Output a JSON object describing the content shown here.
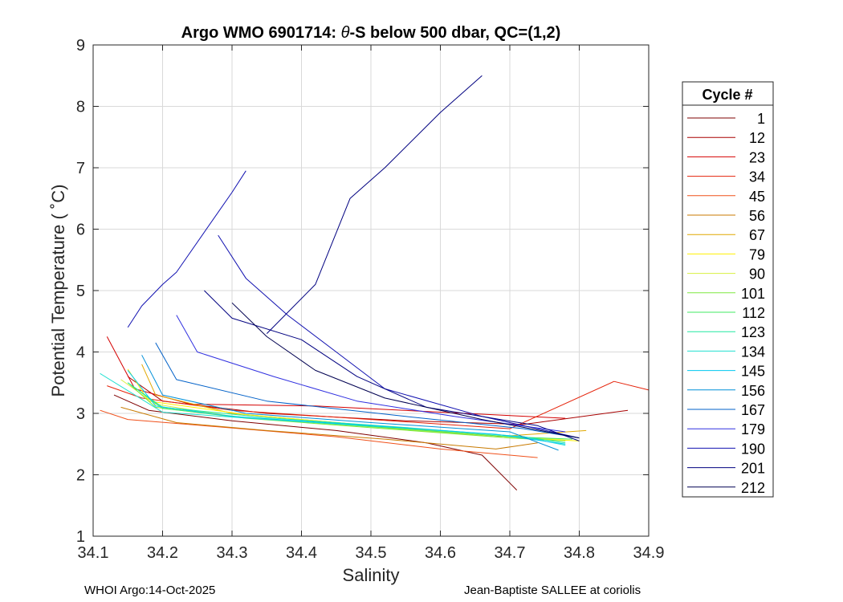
{
  "chart_data": {
    "type": "line",
    "title_prefix": "Argo WMO 6901714: ",
    "title_theta": "θ",
    "title_suffix": "-S below 500 dbar,  QC=(1,2)",
    "xlabel": "Salinity",
    "ylabel": "Potential Temperature ( ˚C)",
    "xlim": [
      34.1,
      34.9
    ],
    "ylim": [
      1,
      9
    ],
    "xticks": [
      "34.1",
      "34.2",
      "34.3",
      "34.4",
      "34.5",
      "34.6",
      "34.7",
      "34.8",
      "34.9"
    ],
    "yticks": [
      "1",
      "2",
      "3",
      "4",
      "5",
      "6",
      "7",
      "8",
      "9"
    ],
    "grid": true,
    "legend": {
      "title": "Cycle #",
      "placement": "outside-right",
      "entries": [
        "1",
        "12",
        "23",
        "34",
        "45",
        "56",
        "67",
        "79",
        "90",
        "101",
        "112",
        "123",
        "134",
        "145",
        "156",
        "167",
        "179",
        "190",
        "201",
        "212"
      ],
      "colors": [
        "#7f0000",
        "#a80000",
        "#d40000",
        "#e52209",
        "#f0501a",
        "#c87a00",
        "#e0a800",
        "#fff000",
        "#d8f040",
        "#7ee840",
        "#40e860",
        "#20e8a0",
        "#20e0d0",
        "#00c8f0",
        "#0090d8",
        "#0060c8",
        "#3030e0",
        "#1010b0",
        "#000080",
        "#000050"
      ]
    },
    "series": [
      {
        "name": "1",
        "color": "#7f0000",
        "points": [
          [
            34.13,
            3.3
          ],
          [
            34.18,
            3.05
          ],
          [
            34.3,
            2.88
          ],
          [
            34.45,
            2.72
          ],
          [
            34.58,
            2.52
          ],
          [
            34.66,
            2.32
          ],
          [
            34.71,
            1.75
          ]
        ]
      },
      {
        "name": "12",
        "color": "#a80000",
        "points": [
          [
            34.15,
            3.6
          ],
          [
            34.2,
            3.2
          ],
          [
            34.35,
            3.0
          ],
          [
            34.55,
            2.88
          ],
          [
            34.72,
            2.82
          ],
          [
            34.87,
            3.05
          ]
        ]
      },
      {
        "name": "23",
        "color": "#d40000",
        "points": [
          [
            34.12,
            4.25
          ],
          [
            34.16,
            3.4
          ],
          [
            34.24,
            3.15
          ],
          [
            34.42,
            3.12
          ],
          [
            34.6,
            3.02
          ],
          [
            34.78,
            2.92
          ]
        ]
      },
      {
        "name": "34",
        "color": "#e52209",
        "points": [
          [
            34.12,
            3.45
          ],
          [
            34.17,
            3.25
          ],
          [
            34.3,
            3.05
          ],
          [
            34.5,
            2.9
          ],
          [
            34.7,
            2.75
          ],
          [
            34.85,
            3.52
          ],
          [
            34.9,
            3.38
          ]
        ]
      },
      {
        "name": "45",
        "color": "#f0501a",
        "points": [
          [
            34.11,
            3.05
          ],
          [
            34.15,
            2.9
          ],
          [
            34.28,
            2.78
          ],
          [
            34.45,
            2.62
          ],
          [
            34.6,
            2.42
          ],
          [
            34.74,
            2.28
          ]
        ]
      },
      {
        "name": "56",
        "color": "#c87a00",
        "points": [
          [
            34.14,
            3.1
          ],
          [
            34.22,
            2.85
          ],
          [
            34.35,
            2.72
          ],
          [
            34.52,
            2.58
          ],
          [
            34.68,
            2.42
          ],
          [
            34.74,
            2.52
          ]
        ]
      },
      {
        "name": "67",
        "color": "#e0a800",
        "points": [
          [
            34.17,
            3.8
          ],
          [
            34.19,
            3.3
          ],
          [
            34.3,
            3.0
          ],
          [
            34.5,
            2.8
          ],
          [
            34.68,
            2.62
          ],
          [
            34.81,
            2.72
          ]
        ]
      },
      {
        "name": "79",
        "color": "#fff000",
        "points": [
          [
            34.15,
            3.72
          ],
          [
            34.18,
            3.2
          ],
          [
            34.32,
            2.98
          ],
          [
            34.52,
            2.78
          ],
          [
            34.72,
            2.6
          ],
          [
            34.8,
            2.55
          ]
        ]
      },
      {
        "name": "90",
        "color": "#d8f040",
        "points": [
          [
            34.14,
            3.55
          ],
          [
            34.19,
            3.15
          ],
          [
            34.3,
            2.95
          ],
          [
            34.5,
            2.78
          ],
          [
            34.7,
            2.6
          ],
          [
            34.79,
            2.58
          ]
        ]
      },
      {
        "name": "101",
        "color": "#7ee840",
        "points": [
          [
            34.15,
            3.5
          ],
          [
            34.19,
            3.1
          ],
          [
            34.32,
            2.92
          ],
          [
            34.52,
            2.75
          ],
          [
            34.7,
            2.6
          ],
          [
            34.78,
            2.55
          ]
        ]
      },
      {
        "name": "112",
        "color": "#40e860",
        "points": [
          [
            34.16,
            3.42
          ],
          [
            34.2,
            3.08
          ],
          [
            34.33,
            2.92
          ],
          [
            34.53,
            2.76
          ],
          [
            34.7,
            2.62
          ],
          [
            34.79,
            2.58
          ]
        ]
      },
      {
        "name": "123",
        "color": "#20e8a0",
        "points": [
          [
            34.15,
            3.5
          ],
          [
            34.2,
            3.1
          ],
          [
            34.35,
            2.93
          ],
          [
            34.55,
            2.77
          ],
          [
            34.72,
            2.62
          ],
          [
            34.78,
            2.52
          ]
        ]
      },
      {
        "name": "134",
        "color": "#20e0d0",
        "points": [
          [
            34.11,
            3.65
          ],
          [
            34.16,
            3.3
          ],
          [
            34.2,
            3.02
          ],
          [
            34.35,
            2.9
          ],
          [
            34.55,
            2.76
          ],
          [
            34.72,
            2.62
          ],
          [
            34.78,
            2.48
          ]
        ]
      },
      {
        "name": "145",
        "color": "#00c8f0",
        "points": [
          [
            34.15,
            3.7
          ],
          [
            34.19,
            3.12
          ],
          [
            34.3,
            2.95
          ],
          [
            34.5,
            2.8
          ],
          [
            34.68,
            2.66
          ],
          [
            34.78,
            2.5
          ]
        ]
      },
      {
        "name": "156",
        "color": "#0090d8",
        "points": [
          [
            34.17,
            3.95
          ],
          [
            34.2,
            3.3
          ],
          [
            34.32,
            3.0
          ],
          [
            34.5,
            2.85
          ],
          [
            34.7,
            2.7
          ],
          [
            34.77,
            2.4
          ]
        ]
      },
      {
        "name": "167",
        "color": "#0060c8",
        "points": [
          [
            34.19,
            4.15
          ],
          [
            34.22,
            3.55
          ],
          [
            34.35,
            3.2
          ],
          [
            34.55,
            2.95
          ],
          [
            34.72,
            2.75
          ],
          [
            34.8,
            2.6
          ]
        ]
      },
      {
        "name": "179",
        "color": "#3030e0",
        "points": [
          [
            34.22,
            4.6
          ],
          [
            34.25,
            4.0
          ],
          [
            34.36,
            3.6
          ],
          [
            34.48,
            3.2
          ],
          [
            34.62,
            2.95
          ],
          [
            34.78,
            2.7
          ]
        ]
      },
      {
        "name": "190",
        "color": "#1010b0",
        "points": [
          [
            34.28,
            5.9
          ],
          [
            34.32,
            5.2
          ],
          [
            34.38,
            4.6
          ],
          [
            34.45,
            4.0
          ],
          [
            34.52,
            3.4
          ],
          [
            34.66,
            2.95
          ],
          [
            34.8,
            2.6
          ]
        ]
      },
      {
        "name": "201",
        "color": "#000080",
        "points": [
          [
            34.26,
            5.0
          ],
          [
            34.3,
            4.55
          ],
          [
            34.4,
            4.2
          ],
          [
            34.48,
            3.6
          ],
          [
            34.58,
            3.1
          ],
          [
            34.74,
            2.8
          ],
          [
            34.8,
            2.55
          ]
        ]
      },
      {
        "name": "212",
        "color": "#000050",
        "points": [
          [
            34.3,
            4.8
          ],
          [
            34.35,
            4.25
          ],
          [
            34.42,
            3.7
          ],
          [
            34.52,
            3.25
          ],
          [
            34.66,
            2.9
          ],
          [
            34.8,
            2.6
          ]
        ]
      },
      {
        "name": "190",
        "color": "#1010b0",
        "points": [
          [
            34.15,
            4.4
          ],
          [
            34.17,
            4.75
          ],
          [
            34.2,
            5.1
          ],
          [
            34.22,
            5.3
          ],
          [
            34.3,
            6.6
          ],
          [
            34.32,
            6.95
          ]
        ]
      },
      {
        "name": "201",
        "color": "#000080",
        "points": [
          [
            34.35,
            4.3
          ],
          [
            34.42,
            5.1
          ],
          [
            34.47,
            6.5
          ],
          [
            34.52,
            7.0
          ],
          [
            34.6,
            7.9
          ],
          [
            34.66,
            8.5
          ]
        ]
      }
    ]
  },
  "footer": {
    "left": "WHOI Argo:14-Oct-2025",
    "right": "Jean-Baptiste SALLEE at coriolis"
  }
}
